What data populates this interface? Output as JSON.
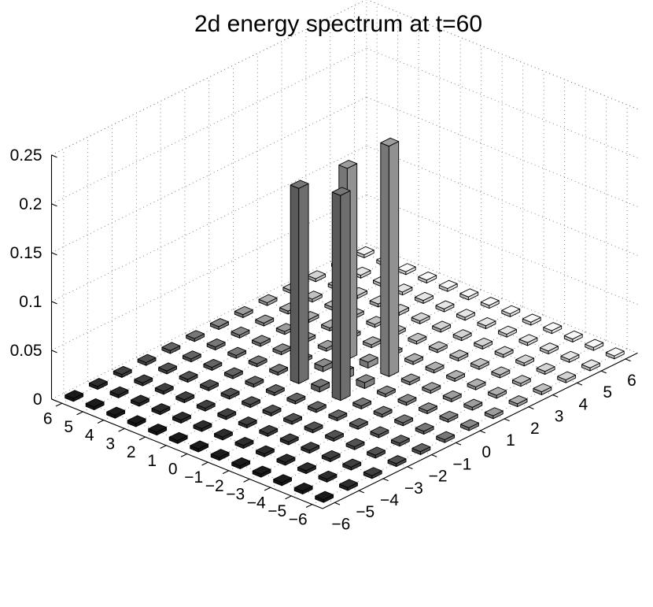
{
  "chart_data": {
    "type": "bar3d",
    "title": "2d energy spectrum at t=60",
    "x_ticks": [
      "−6",
      "−5",
      "−4",
      "−3",
      "−2",
      "−1",
      "0",
      "1",
      "2",
      "3",
      "4",
      "5",
      "6"
    ],
    "y_ticks": [
      "−6",
      "−5",
      "−4",
      "−3",
      "−2",
      "−1",
      "0",
      "1",
      "2",
      "3",
      "4",
      "5",
      "6"
    ],
    "z_ticks": [
      "0",
      "0.05",
      "0.1",
      "0.15",
      "0.2",
      "0.25"
    ],
    "x_range": [
      -6,
      6
    ],
    "y_range": [
      -6,
      6
    ],
    "zlim": [
      0,
      0.25
    ],
    "grid": true,
    "background_bar_value": 0.003,
    "peaks": [
      {
        "x": -1,
        "y": -1,
        "value": 0.21
      },
      {
        "x": 1,
        "y": -1,
        "value": 0.236
      },
      {
        "x": -1,
        "y": 1,
        "value": 0.2
      },
      {
        "x": 1,
        "y": 1,
        "value": 0.196
      }
    ],
    "secondary": [
      {
        "x": 0,
        "y": 0,
        "value": 0.008
      },
      {
        "x": 0,
        "y": -1,
        "value": 0.006
      },
      {
        "x": 1,
        "y": 0,
        "value": 0.006
      },
      {
        "x": -1,
        "y": 0,
        "value": 0.005
      },
      {
        "x": 0,
        "y": 1,
        "value": 0.005
      }
    ]
  }
}
